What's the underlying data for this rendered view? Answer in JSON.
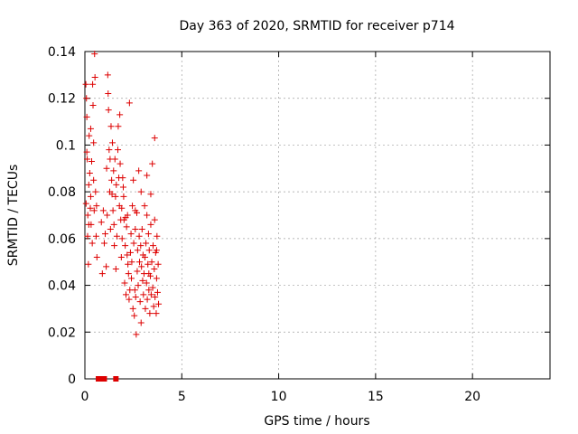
{
  "chart_data": {
    "type": "scatter",
    "title": "Day 363 of 2020, SRMTID for receiver p714",
    "xlabel": "GPS time / hours",
    "ylabel": "SRMTID / TECUs",
    "xlim": [
      0,
      24
    ],
    "ylim": [
      0,
      0.14
    ],
    "xticks": [
      0,
      5,
      10,
      15,
      20
    ],
    "yticks": [
      0,
      0.02,
      0.04,
      0.06,
      0.08,
      0.1,
      0.12,
      0.14
    ],
    "xtick_labels": [
      "0",
      "5",
      "10",
      "15",
      "20"
    ],
    "ytick_labels": [
      "0",
      "0.02",
      "0.04",
      "0.06",
      "0.08",
      "0.1",
      "0.12",
      "0.14"
    ],
    "grid": true,
    "marker": "+",
    "color": "#dd0000",
    "points": [
      [
        0.05,
        0.126
      ],
      [
        0.08,
        0.12
      ],
      [
        0.1,
        0.097
      ],
      [
        0.12,
        0.094
      ],
      [
        0.06,
        0.075
      ],
      [
        0.14,
        0.061
      ],
      [
        0.18,
        0.049
      ],
      [
        0.2,
        0.083
      ],
      [
        0.22,
        0.104
      ],
      [
        0.25,
        0.088
      ],
      [
        0.15,
        0.07
      ],
      [
        0.3,
        0.078
      ],
      [
        0.32,
        0.066
      ],
      [
        0.35,
        0.093
      ],
      [
        0.38,
        0.058
      ],
      [
        0.4,
        0.126
      ],
      [
        0.42,
        0.117
      ],
      [
        0.45,
        0.101
      ],
      [
        0.48,
        0.072
      ],
      [
        0.5,
        0.139
      ],
      [
        0.52,
        0.129
      ],
      [
        0.55,
        0.08
      ],
      [
        0.58,
        0.061
      ],
      [
        0.6,
        0.074
      ],
      [
        0.62,
        0.052
      ],
      [
        0.1,
        0.112
      ],
      [
        0.3,
        0.107
      ],
      [
        0.45,
        0.085
      ],
      [
        0.28,
        0.073
      ],
      [
        0.2,
        0.066
      ],
      [
        0.85,
        0.067
      ],
      [
        0.9,
        0.045
      ],
      [
        0.95,
        0.072
      ],
      [
        1.0,
        0.058
      ],
      [
        1.05,
        0.062
      ],
      [
        1.1,
        0.048
      ],
      [
        1.12,
        0.09
      ],
      [
        1.15,
        0.07
      ],
      [
        1.18,
        0.13
      ],
      [
        1.2,
        0.122
      ],
      [
        1.22,
        0.115
      ],
      [
        1.25,
        0.098
      ],
      [
        1.28,
        0.08
      ],
      [
        1.3,
        0.094
      ],
      [
        1.32,
        0.064
      ],
      [
        1.35,
        0.108
      ],
      [
        1.38,
        0.085
      ],
      [
        1.4,
        0.079
      ],
      [
        1.42,
        0.101
      ],
      [
        1.45,
        0.072
      ],
      [
        1.48,
        0.089
      ],
      [
        1.5,
        0.066
      ],
      [
        1.52,
        0.057
      ],
      [
        1.55,
        0.094
      ],
      [
        1.58,
        0.078
      ],
      [
        1.6,
        0.047
      ],
      [
        1.62,
        0.083
      ],
      [
        1.65,
        0.061
      ],
      [
        1.7,
        0.098
      ],
      [
        1.72,
        0.108
      ],
      [
        1.75,
        0.086
      ],
      [
        1.78,
        0.074
      ],
      [
        1.8,
        0.113
      ],
      [
        1.82,
        0.092
      ],
      [
        1.85,
        0.068
      ],
      [
        1.88,
        0.052
      ],
      [
        1.9,
        0.073
      ],
      [
        1.92,
        0.06
      ],
      [
        1.95,
        0.086
      ],
      [
        1.98,
        0.082
      ],
      [
        2.0,
        0.078
      ],
      [
        2.02,
        0.068
      ],
      [
        2.05,
        0.041
      ],
      [
        2.08,
        0.057
      ],
      [
        2.1,
        0.069
      ],
      [
        2.12,
        0.036
      ],
      [
        2.15,
        0.065
      ],
      [
        2.18,
        0.053
      ],
      [
        2.2,
        0.07
      ],
      [
        2.22,
        0.049
      ],
      [
        2.25,
        0.045
      ],
      [
        2.28,
        0.034
      ],
      [
        2.3,
        0.118
      ],
      [
        2.32,
        0.038
      ],
      [
        2.35,
        0.054
      ],
      [
        2.38,
        0.062
      ],
      [
        2.4,
        0.043
      ],
      [
        2.42,
        0.05
      ],
      [
        2.45,
        0.074
      ],
      [
        2.48,
        0.03
      ],
      [
        2.5,
        0.085
      ],
      [
        2.52,
        0.058
      ],
      [
        2.55,
        0.027
      ],
      [
        2.58,
        0.038
      ],
      [
        2.6,
        0.064
      ],
      [
        2.62,
        0.035
      ],
      [
        2.65,
        0.019
      ],
      [
        2.68,
        0.071
      ],
      [
        2.7,
        0.046
      ],
      [
        2.72,
        0.055
      ],
      [
        2.75,
        0.04
      ],
      [
        2.78,
        0.089
      ],
      [
        2.8,
        0.061
      ],
      [
        2.82,
        0.05
      ],
      [
        2.85,
        0.033
      ],
      [
        2.88,
        0.057
      ],
      [
        2.9,
        0.024
      ],
      [
        2.92,
        0.048
      ],
      [
        2.95,
        0.064
      ],
      [
        2.98,
        0.042
      ],
      [
        3.0,
        0.053
      ],
      [
        3.02,
        0.036
      ],
      [
        3.05,
        0.045
      ],
      [
        3.08,
        0.074
      ],
      [
        3.1,
        0.052
      ],
      [
        3.12,
        0.03
      ],
      [
        3.15,
        0.058
      ],
      [
        3.18,
        0.041
      ],
      [
        3.2,
        0.087
      ],
      [
        3.22,
        0.034
      ],
      [
        3.25,
        0.049
      ],
      [
        3.28,
        0.062
      ],
      [
        3.3,
        0.038
      ],
      [
        3.32,
        0.055
      ],
      [
        3.35,
        0.028
      ],
      [
        3.38,
        0.044
      ],
      [
        3.4,
        0.066
      ],
      [
        3.42,
        0.036
      ],
      [
        3.45,
        0.05
      ],
      [
        3.48,
        0.092
      ],
      [
        3.5,
        0.039
      ],
      [
        3.52,
        0.057
      ],
      [
        3.55,
        0.031
      ],
      [
        3.58,
        0.047
      ],
      [
        3.6,
        0.068
      ],
      [
        3.62,
        0.035
      ],
      [
        3.65,
        0.054
      ],
      [
        3.68,
        0.028
      ],
      [
        3.7,
        0.043
      ],
      [
        3.72,
        0.061
      ],
      [
        3.75,
        0.037
      ],
      [
        3.78,
        0.049
      ],
      [
        3.8,
        0.032
      ],
      [
        3.6,
        0.103
      ],
      [
        3.4,
        0.079
      ],
      [
        3.2,
        0.07
      ],
      [
        2.9,
        0.08
      ],
      [
        3.7,
        0.055
      ],
      [
        3.3,
        0.045
      ],
      [
        2.6,
        0.072
      ]
    ],
    "markers_at_zero": [
      0.7,
      0.8,
      0.9,
      1.0,
      1.6
    ]
  }
}
